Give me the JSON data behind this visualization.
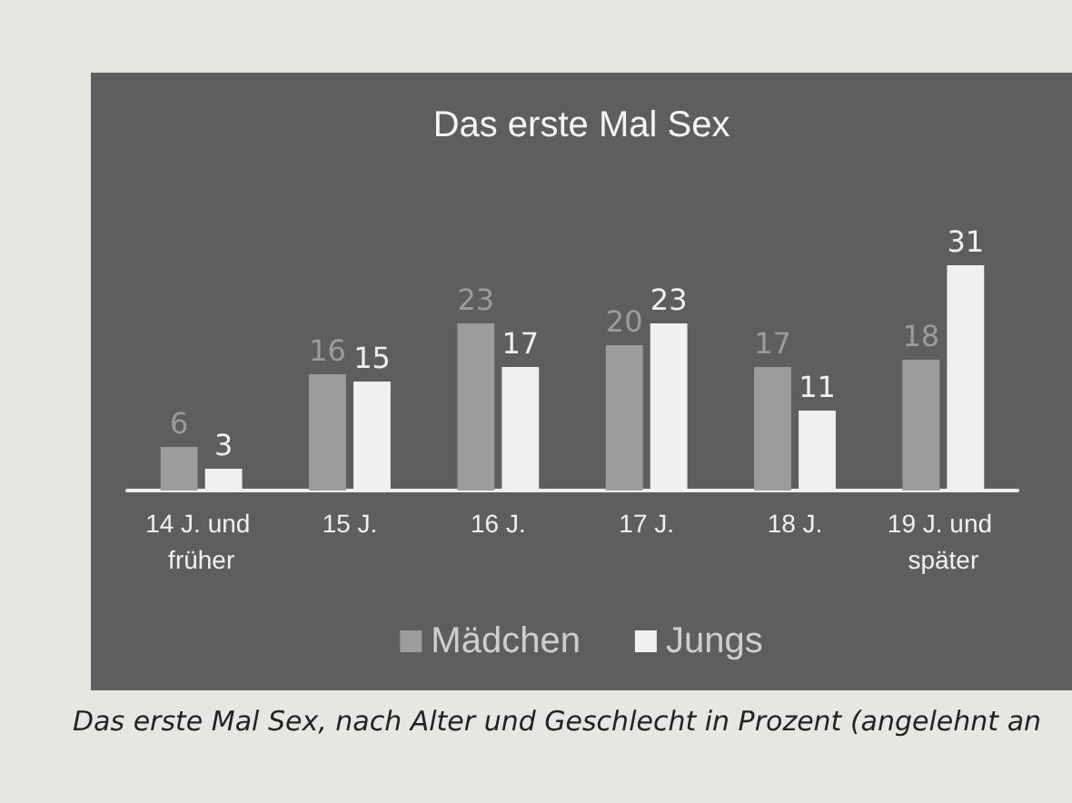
{
  "chart_data": {
    "type": "bar",
    "title": "Das erste Mal Sex",
    "categories": [
      "14 J. und früher",
      "15 J.",
      "16 J.",
      "17 J.",
      "18 J.",
      "19 J. und später"
    ],
    "series": [
      {
        "name": "Mädchen",
        "color": "#9c9c9c",
        "values": [
          6,
          16,
          23,
          20,
          17,
          18
        ]
      },
      {
        "name": "Jungs",
        "color": "#f0f0f0",
        "values": [
          3,
          15,
          17,
          23,
          11,
          31
        ]
      }
    ],
    "data_labels": true,
    "legend": "bottom",
    "grid": false,
    "tick_labels": "x",
    "annotations": [
      "Das erste Mal Sex, nach Alter und Geschlecht in Prozent (angelehnt an"
    ]
  }
}
